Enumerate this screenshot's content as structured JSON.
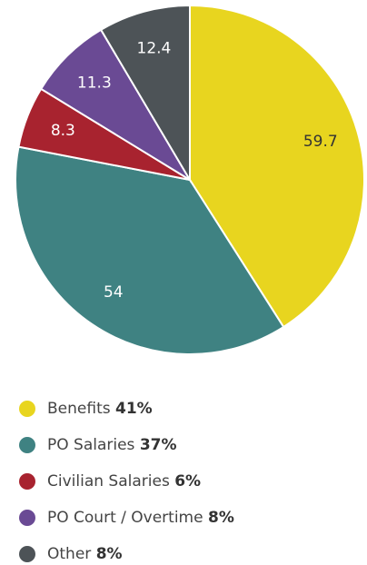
{
  "chart_data": {
    "type": "pie",
    "categories": [
      "Benefits",
      "PO Salaries",
      "Civilian Salaries",
      "PO Court / Overtime",
      "Other"
    ],
    "values": [
      59.7,
      54,
      8.3,
      11.3,
      12.4
    ],
    "shares": [
      41,
      37,
      6,
      8,
      8
    ],
    "share_labels": [
      "41%",
      "37%",
      "6%",
      "8%",
      "8%"
    ],
    "colors": [
      "#e8d51f",
      "#3f8282",
      "#a8232f",
      "#6a4a94",
      "#4d5357"
    ],
    "label_colors": [
      "#333333",
      "#ffffff",
      "#ffffff",
      "#ffffff",
      "#ffffff"
    ]
  }
}
